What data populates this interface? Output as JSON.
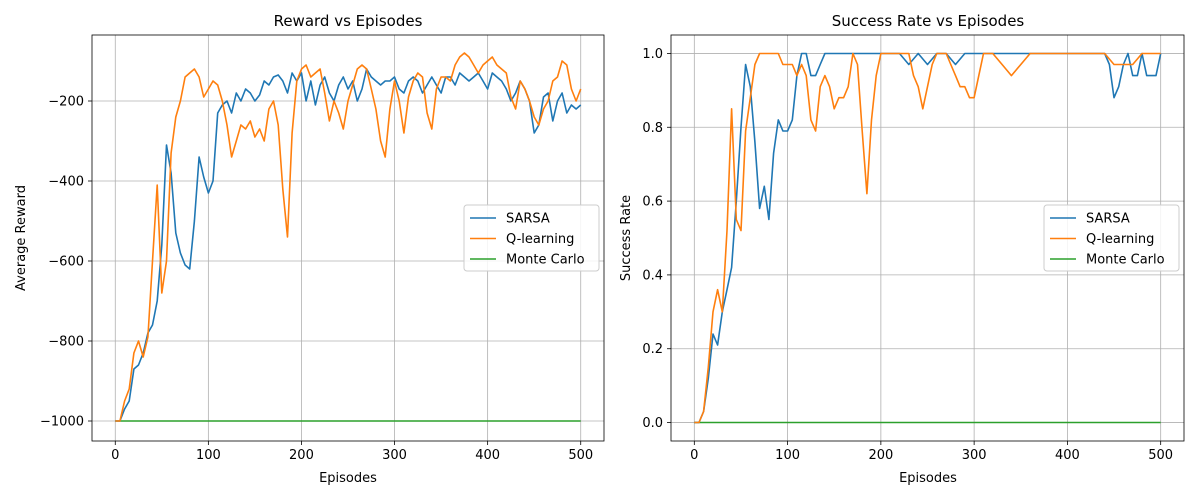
{
  "chart_data": [
    {
      "type": "line",
      "title": "Reward vs Episodes",
      "xlabel": "Episodes",
      "ylabel": "Average Reward",
      "xlim": [
        -25,
        525
      ],
      "ylim": [
        -1050,
        -35
      ],
      "xticks": [
        0,
        100,
        200,
        300,
        400,
        500
      ],
      "yticks": [
        -1000,
        -800,
        -600,
        -400,
        -200
      ],
      "xtick_labels": [
        "0",
        "100",
        "200",
        "300",
        "400",
        "500"
      ],
      "ytick_labels": [
        "−1000",
        "−800",
        "−600",
        "−400",
        "−200"
      ],
      "grid": true,
      "legend_position": "center-right",
      "series": [
        {
          "name": "SARSA",
          "color": "#1f77b4",
          "x": [
            0,
            5,
            10,
            15,
            20,
            25,
            30,
            35,
            40,
            45,
            50,
            55,
            60,
            65,
            70,
            75,
            80,
            85,
            90,
            95,
            100,
            105,
            110,
            115,
            120,
            125,
            130,
            135,
            140,
            145,
            150,
            155,
            160,
            165,
            170,
            175,
            180,
            185,
            190,
            195,
            200,
            205,
            210,
            215,
            220,
            225,
            230,
            235,
            240,
            245,
            250,
            255,
            260,
            265,
            270,
            275,
            280,
            285,
            290,
            295,
            300,
            305,
            310,
            315,
            320,
            325,
            330,
            335,
            340,
            345,
            350,
            355,
            360,
            365,
            370,
            375,
            380,
            385,
            390,
            395,
            400,
            405,
            410,
            415,
            420,
            425,
            430,
            435,
            440,
            445,
            450,
            455,
            460,
            465,
            470,
            475,
            480,
            485,
            490,
            495,
            500
          ],
          "y": [
            -1000,
            -1000,
            -970,
            -950,
            -870,
            -860,
            -830,
            -780,
            -760,
            -700,
            -560,
            -310,
            -380,
            -530,
            -580,
            -610,
            -620,
            -500,
            -340,
            -390,
            -430,
            -400,
            -230,
            -210,
            -200,
            -230,
            -180,
            -200,
            -170,
            -180,
            -200,
            -185,
            -150,
            -160,
            -140,
            -135,
            -150,
            -180,
            -130,
            -150,
            -130,
            -200,
            -150,
            -210,
            -160,
            -140,
            -180,
            -200,
            -160,
            -140,
            -170,
            -150,
            -200,
            -170,
            -120,
            -140,
            -150,
            -160,
            -150,
            -150,
            -140,
            -170,
            -180,
            -150,
            -140,
            -150,
            -180,
            -160,
            -140,
            -160,
            -180,
            -140,
            -140,
            -160,
            -130,
            -140,
            -150,
            -140,
            -130,
            -150,
            -170,
            -130,
            -140,
            -150,
            -170,
            -200,
            -180,
            -150,
            -170,
            -200,
            -280,
            -260,
            -190,
            -180,
            -250,
            -200,
            -180,
            -230,
            -210,
            -220,
            -210
          ]
        },
        {
          "name": "Q-learning",
          "color": "#ff7f0e",
          "x": [
            0,
            5,
            10,
            15,
            20,
            25,
            30,
            35,
            40,
            45,
            50,
            55,
            60,
            65,
            70,
            75,
            80,
            85,
            90,
            95,
            100,
            105,
            110,
            115,
            120,
            125,
            130,
            135,
            140,
            145,
            150,
            155,
            160,
            165,
            170,
            175,
            180,
            185,
            190,
            195,
            200,
            205,
            210,
            215,
            220,
            225,
            230,
            235,
            240,
            245,
            250,
            255,
            260,
            265,
            270,
            275,
            280,
            285,
            290,
            295,
            300,
            305,
            310,
            315,
            320,
            325,
            330,
            335,
            340,
            345,
            350,
            355,
            360,
            365,
            370,
            375,
            380,
            385,
            390,
            395,
            400,
            405,
            410,
            415,
            420,
            425,
            430,
            435,
            440,
            445,
            450,
            455,
            460,
            465,
            470,
            475,
            480,
            485,
            490,
            495,
            500
          ],
          "y": [
            -1000,
            -1000,
            -950,
            -920,
            -830,
            -800,
            -840,
            -790,
            -600,
            -410,
            -680,
            -600,
            -330,
            -240,
            -200,
            -140,
            -130,
            -120,
            -140,
            -190,
            -170,
            -150,
            -160,
            -200,
            -260,
            -340,
            -300,
            -260,
            -270,
            -250,
            -290,
            -270,
            -300,
            -220,
            -200,
            -260,
            -420,
            -540,
            -280,
            -150,
            -120,
            -110,
            -140,
            -130,
            -120,
            -180,
            -250,
            -200,
            -230,
            -270,
            -200,
            -160,
            -120,
            -110,
            -120,
            -170,
            -220,
            -300,
            -340,
            -220,
            -150,
            -200,
            -280,
            -190,
            -150,
            -130,
            -140,
            -230,
            -270,
            -170,
            -140,
            -140,
            -150,
            -110,
            -90,
            -80,
            -90,
            -110,
            -130,
            -110,
            -100,
            -90,
            -110,
            -120,
            -130,
            -190,
            -220,
            -150,
            -170,
            -200,
            -240,
            -260,
            -220,
            -200,
            -150,
            -140,
            -100,
            -110,
            -170,
            -200,
            -170
          ]
        },
        {
          "name": "Monte Carlo",
          "color": "#2ca02c",
          "x": [
            0,
            500
          ],
          "y": [
            -1000,
            -1000
          ]
        }
      ]
    },
    {
      "type": "line",
      "title": "Success Rate vs Episodes",
      "xlabel": "Episodes",
      "ylabel": "Success Rate",
      "xlim": [
        -25,
        525
      ],
      "ylim": [
        -0.05,
        1.05
      ],
      "xticks": [
        0,
        100,
        200,
        300,
        400,
        500
      ],
      "yticks": [
        0.0,
        0.2,
        0.4,
        0.6,
        0.8,
        1.0
      ],
      "xtick_labels": [
        "0",
        "100",
        "200",
        "300",
        "400",
        "500"
      ],
      "ytick_labels": [
        "0.0",
        "0.2",
        "0.4",
        "0.6",
        "0.8",
        "1.0"
      ],
      "grid": true,
      "legend_position": "center-right",
      "series": [
        {
          "name": "SARSA",
          "color": "#1f77b4",
          "x": [
            0,
            5,
            10,
            15,
            20,
            25,
            30,
            35,
            40,
            45,
            50,
            55,
            60,
            65,
            70,
            75,
            80,
            85,
            90,
            95,
            100,
            105,
            110,
            115,
            120,
            125,
            130,
            135,
            140,
            145,
            150,
            155,
            160,
            165,
            170,
            175,
            180,
            185,
            190,
            195,
            200,
            210,
            220,
            230,
            240,
            250,
            260,
            270,
            280,
            290,
            300,
            320,
            340,
            360,
            380,
            400,
            420,
            440,
            445,
            450,
            455,
            460,
            465,
            470,
            475,
            480,
            485,
            490,
            495,
            500
          ],
          "y": [
            0.0,
            0.0,
            0.03,
            0.12,
            0.24,
            0.21,
            0.3,
            0.36,
            0.42,
            0.6,
            0.8,
            0.97,
            0.91,
            0.76,
            0.58,
            0.64,
            0.55,
            0.73,
            0.82,
            0.79,
            0.79,
            0.82,
            0.94,
            1.0,
            1.0,
            0.94,
            0.94,
            0.97,
            1.0,
            1.0,
            1.0,
            1.0,
            1.0,
            1.0,
            1.0,
            1.0,
            1.0,
            1.0,
            1.0,
            1.0,
            1.0,
            1.0,
            1.0,
            0.97,
            1.0,
            0.97,
            1.0,
            1.0,
            0.97,
            1.0,
            1.0,
            1.0,
            1.0,
            1.0,
            1.0,
            1.0,
            1.0,
            1.0,
            0.97,
            0.88,
            0.91,
            0.97,
            1.0,
            0.94,
            0.94,
            1.0,
            0.94,
            0.94,
            0.94,
            1.0
          ]
        },
        {
          "name": "Q-learning",
          "color": "#ff7f0e",
          "x": [
            0,
            5,
            10,
            15,
            20,
            25,
            30,
            35,
            40,
            45,
            50,
            55,
            60,
            65,
            70,
            75,
            80,
            85,
            90,
            95,
            100,
            105,
            110,
            115,
            120,
            125,
            130,
            135,
            140,
            145,
            150,
            155,
            160,
            165,
            170,
            175,
            180,
            185,
            190,
            195,
            200,
            210,
            220,
            230,
            235,
            240,
            245,
            250,
            255,
            260,
            265,
            270,
            275,
            280,
            285,
            290,
            295,
            300,
            305,
            310,
            315,
            320,
            330,
            340,
            350,
            360,
            370,
            380,
            390,
            400,
            410,
            420,
            430,
            440,
            450,
            460,
            470,
            480,
            490,
            500
          ],
          "y": [
            0.0,
            0.0,
            0.03,
            0.15,
            0.3,
            0.36,
            0.3,
            0.52,
            0.85,
            0.55,
            0.52,
            0.79,
            0.88,
            0.97,
            1.0,
            1.0,
            1.0,
            1.0,
            1.0,
            0.97,
            0.97,
            0.97,
            0.94,
            0.97,
            0.94,
            0.82,
            0.79,
            0.91,
            0.94,
            0.91,
            0.85,
            0.88,
            0.88,
            0.91,
            1.0,
            0.97,
            0.79,
            0.62,
            0.82,
            0.94,
            1.0,
            1.0,
            1.0,
            1.0,
            0.94,
            0.91,
            0.85,
            0.91,
            0.97,
            1.0,
            1.0,
            1.0,
            0.97,
            0.94,
            0.91,
            0.91,
            0.88,
            0.88,
            0.94,
            1.0,
            1.0,
            1.0,
            0.97,
            0.94,
            0.97,
            1.0,
            1.0,
            1.0,
            1.0,
            1.0,
            1.0,
            1.0,
            1.0,
            1.0,
            0.97,
            0.97,
            0.97,
            1.0,
            1.0,
            1.0
          ]
        },
        {
          "name": "Monte Carlo",
          "color": "#2ca02c",
          "x": [
            0,
            500
          ],
          "y": [
            0.0,
            0.0
          ]
        }
      ]
    }
  ]
}
